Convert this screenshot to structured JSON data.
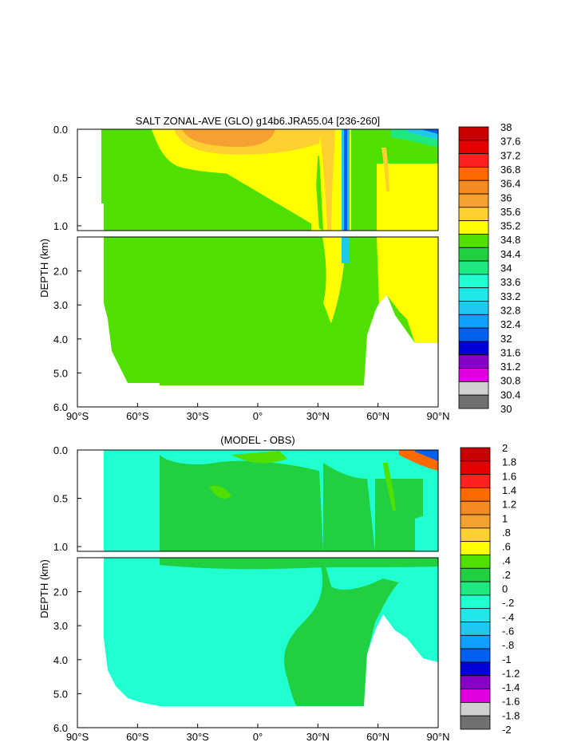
{
  "chart_data": [
    {
      "type": "heatmap",
      "title": "SALT ZONAL-AVE (GLO) g14b6.JRA55.04 [236-260]",
      "ylabel": "DEPTH (km)",
      "xlabel": "",
      "xlim": [
        -90,
        90
      ],
      "ylim_upper": [
        0.0,
        1.0
      ],
      "ylim_lower": [
        1.0,
        6.0
      ],
      "x_ticks": [
        {
          "value": -90,
          "label": "90°S"
        },
        {
          "value": -60,
          "label": "60°S"
        },
        {
          "value": -30,
          "label": "30°S"
        },
        {
          "value": 0,
          "label": "0°"
        },
        {
          "value": 30,
          "label": "30°N"
        },
        {
          "value": 60,
          "label": "60°N"
        },
        {
          "value": 90,
          "label": "90°N"
        }
      ],
      "y_ticks_upper": [
        "0.0",
        "0.5",
        "1.0"
      ],
      "y_ticks_lower": [
        "2.0",
        "3.0",
        "4.0",
        "5.0",
        "6.0"
      ],
      "colorbar_labels": [
        "38",
        "37.6",
        "37.2",
        "36.8",
        "36.4",
        "36",
        "35.6",
        "35.2",
        "34.8",
        "34.4",
        "34",
        "33.6",
        "33.2",
        "32.8",
        "32.4",
        "32",
        "31.6",
        "31.2",
        "30.8",
        "30.4",
        "30"
      ],
      "colorbar_colors": [
        "#c80000",
        "#e40000",
        "#ff2020",
        "#ff6a00",
        "#f58a20",
        "#f5a030",
        "#ffd030",
        "#ffff00",
        "#50e000",
        "#20d040",
        "#20e880",
        "#20ffd0",
        "#20e8e8",
        "#20c8f0",
        "#10a0ff",
        "#0060f0",
        "#0000d8",
        "#8800c8",
        "#e000e0",
        "#d0d0d0",
        "#707070"
      ]
    },
    {
      "type": "heatmap",
      "title": "(MODEL - OBS)",
      "ylabel": "DEPTH (km)",
      "xlabel": "",
      "xlim": [
        -90,
        90
      ],
      "ylim_upper": [
        0.0,
        1.0
      ],
      "ylim_lower": [
        1.0,
        6.0
      ],
      "x_ticks": [
        {
          "value": -90,
          "label": "90°S"
        },
        {
          "value": -60,
          "label": "60°S"
        },
        {
          "value": -30,
          "label": "30°S"
        },
        {
          "value": 0,
          "label": "0°"
        },
        {
          "value": 30,
          "label": "30°N"
        },
        {
          "value": 60,
          "label": "60°N"
        },
        {
          "value": 90,
          "label": "90°N"
        }
      ],
      "y_ticks_upper": [
        "0.0",
        "0.5",
        "1.0"
      ],
      "y_ticks_lower": [
        "2.0",
        "3.0",
        "4.0",
        "5.0",
        "6.0"
      ],
      "colorbar_labels": [
        "2",
        "1.8",
        "1.6",
        "1.4",
        "1.2",
        "1",
        ".8",
        ".6",
        ".4",
        ".2",
        "0",
        "-.2",
        "-.4",
        "-.6",
        "-.8",
        "-1",
        "-1.2",
        "-1.4",
        "-1.6",
        "-1.8",
        "-2"
      ],
      "colorbar_colors": [
        "#c80000",
        "#e40000",
        "#ff2020",
        "#ff6a00",
        "#f58a20",
        "#f5a030",
        "#ffd030",
        "#ffff00",
        "#50e000",
        "#20d040",
        "#20e880",
        "#20ffd0",
        "#20e8e8",
        "#20c8f0",
        "#10a0ff",
        "#0060f0",
        "#0000d8",
        "#8800c8",
        "#e000e0",
        "#d0d0d0",
        "#707070"
      ]
    }
  ]
}
